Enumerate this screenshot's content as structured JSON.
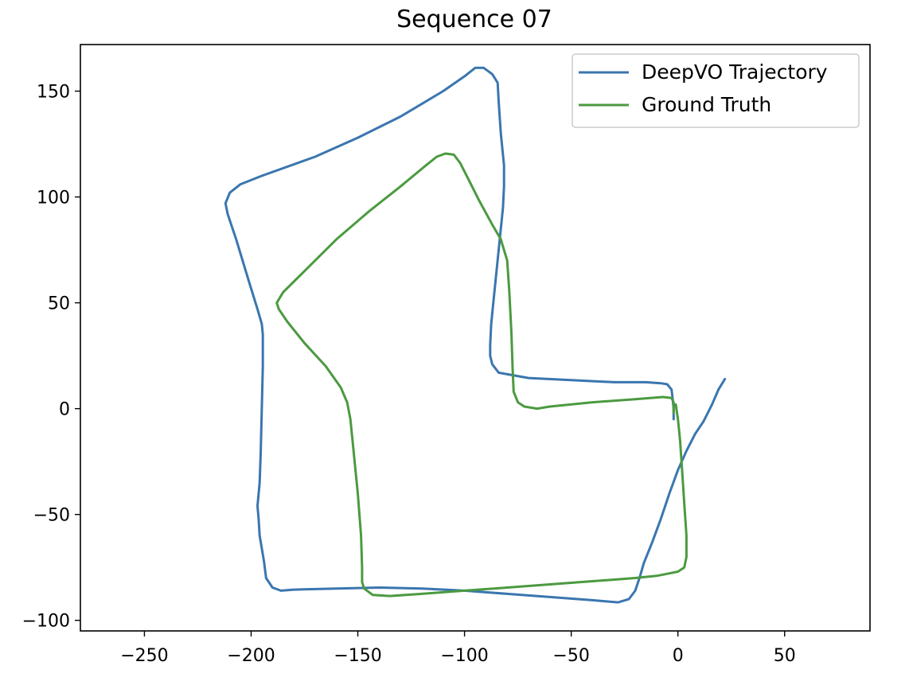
{
  "chart_data": {
    "type": "line",
    "title": "Sequence 07",
    "xlabel": "",
    "ylabel": "",
    "xlim": [
      -280,
      90
    ],
    "ylim": [
      -105,
      172
    ],
    "xticks": [
      -250,
      -200,
      -150,
      -100,
      -50,
      0,
      50
    ],
    "yticks": [
      -100,
      -50,
      0,
      50,
      100,
      150
    ],
    "xtick_labels": [
      "−250",
      "−200",
      "−150",
      "−100",
      "−50",
      "0",
      "50"
    ],
    "ytick_labels": [
      "−100",
      "−50",
      "0",
      "50",
      "100",
      "150"
    ],
    "grid": false,
    "legend_position": "top-right",
    "series": [
      {
        "name": "DeepVO Trajectory",
        "color": "#3a76af",
        "points": [
          [
            22,
            14
          ],
          [
            19,
            9
          ],
          [
            16,
            2
          ],
          [
            12,
            -6
          ],
          [
            8,
            -12
          ],
          [
            4,
            -20
          ],
          [
            0,
            -29
          ],
          [
            -4,
            -40
          ],
          [
            -8,
            -52
          ],
          [
            -12,
            -63
          ],
          [
            -16,
            -73
          ],
          [
            -18,
            -80
          ],
          [
            -20,
            -86
          ],
          [
            -23,
            -90
          ],
          [
            -28,
            -91.5
          ],
          [
            -40,
            -90.5
          ],
          [
            -60,
            -89
          ],
          [
            -80,
            -87.5
          ],
          [
            -100,
            -86
          ],
          [
            -120,
            -85
          ],
          [
            -140,
            -84.5
          ],
          [
            -160,
            -85
          ],
          [
            -180,
            -85.5
          ],
          [
            -186,
            -86
          ],
          [
            -190,
            -84.5
          ],
          [
            -193,
            -80
          ],
          [
            -194,
            -72
          ],
          [
            -196,
            -60
          ],
          [
            -196.5,
            -52
          ],
          [
            -197,
            -46
          ],
          [
            -196,
            -35
          ],
          [
            -195.5,
            -20
          ],
          [
            -195,
            0
          ],
          [
            -194.5,
            20
          ],
          [
            -194.5,
            35
          ],
          [
            -195,
            40
          ],
          [
            -197,
            47
          ],
          [
            -201,
            60
          ],
          [
            -207,
            80
          ],
          [
            -211,
            92
          ],
          [
            -212,
            97
          ],
          [
            -210,
            102
          ],
          [
            -205,
            106
          ],
          [
            -195,
            110
          ],
          [
            -170,
            119
          ],
          [
            -150,
            128
          ],
          [
            -130,
            138
          ],
          [
            -110,
            150
          ],
          [
            -100,
            157
          ],
          [
            -95,
            161
          ],
          [
            -91,
            161
          ],
          [
            -87,
            158
          ],
          [
            -84.5,
            154
          ],
          [
            -84,
            145
          ],
          [
            -83,
            130
          ],
          [
            -81.5,
            115
          ],
          [
            -81.5,
            105
          ],
          [
            -82,
            95
          ],
          [
            -84,
            75
          ],
          [
            -86,
            55
          ],
          [
            -87.5,
            40
          ],
          [
            -88,
            30
          ],
          [
            -88,
            25
          ],
          [
            -87,
            21
          ],
          [
            -84,
            17
          ],
          [
            -70,
            14.5
          ],
          [
            -50,
            13.5
          ],
          [
            -30,
            12.5
          ],
          [
            -15,
            12.5
          ],
          [
            -8,
            12
          ],
          [
            -5,
            11.5
          ],
          [
            -3,
            9
          ],
          [
            -2.5,
            5
          ],
          [
            -2,
            0
          ],
          [
            -2,
            -5
          ]
        ]
      },
      {
        "name": "Ground Truth",
        "color": "#4b9a40",
        "points": [
          [
            -2,
            -2
          ],
          [
            -2,
            3
          ],
          [
            -3,
            5
          ],
          [
            -7,
            5.5
          ],
          [
            -20,
            4.5
          ],
          [
            -40,
            3
          ],
          [
            -60,
            1
          ],
          [
            -66,
            0
          ],
          [
            -72,
            1
          ],
          [
            -75,
            3
          ],
          [
            -77,
            8
          ],
          [
            -77.5,
            20
          ],
          [
            -78,
            35
          ],
          [
            -79,
            55
          ],
          [
            -80,
            70
          ],
          [
            -83,
            80
          ],
          [
            -87,
            87
          ],
          [
            -93,
            98
          ],
          [
            -98,
            108
          ],
          [
            -102,
            116
          ],
          [
            -105,
            120
          ],
          [
            -109,
            120.5
          ],
          [
            -113,
            119
          ],
          [
            -118,
            115
          ],
          [
            -130,
            105
          ],
          [
            -145,
            93
          ],
          [
            -160,
            80
          ],
          [
            -172,
            68
          ],
          [
            -180,
            60
          ],
          [
            -185,
            55
          ],
          [
            -188,
            50
          ],
          [
            -187,
            47
          ],
          [
            -183,
            41
          ],
          [
            -175,
            31
          ],
          [
            -165,
            20
          ],
          [
            -158,
            10
          ],
          [
            -155,
            3
          ],
          [
            -153.5,
            -5
          ],
          [
            -152,
            -20
          ],
          [
            -150,
            -40
          ],
          [
            -148.5,
            -60
          ],
          [
            -148,
            -75
          ],
          [
            -148,
            -82
          ],
          [
            -147,
            -85
          ],
          [
            -143,
            -88
          ],
          [
            -135,
            -88.5
          ],
          [
            -120,
            -87.5
          ],
          [
            -100,
            -86
          ],
          [
            -80,
            -84.5
          ],
          [
            -60,
            -83
          ],
          [
            -40,
            -81.5
          ],
          [
            -20,
            -80
          ],
          [
            -10,
            -79
          ],
          [
            -5,
            -78
          ],
          [
            0,
            -77
          ],
          [
            3,
            -75
          ],
          [
            4,
            -70
          ],
          [
            4,
            -60
          ],
          [
            3,
            -45
          ],
          [
            2,
            -30
          ],
          [
            1,
            -15
          ],
          [
            0,
            -5
          ],
          [
            -1,
            2
          ]
        ]
      }
    ]
  }
}
